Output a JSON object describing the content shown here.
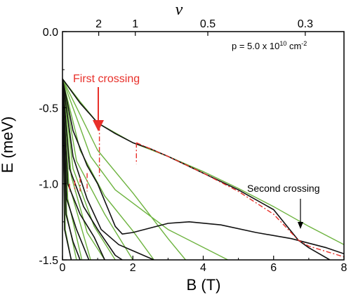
{
  "chart_data": {
    "type": "line",
    "xlabel": "B (T)",
    "ylabel": "E (meV)",
    "top_axis_label": "ν",
    "xlim": [
      0,
      8
    ],
    "ylim": [
      -1.5,
      0.0
    ],
    "x_ticks": [
      0,
      2,
      4,
      6,
      8
    ],
    "x_tick_labels": [
      "0",
      "2",
      "4",
      "6",
      "8"
    ],
    "y_ticks": [
      0.0,
      -0.5,
      -1.0,
      -1.5
    ],
    "y_tick_labels": [
      "0.0",
      "-0.5",
      "-1.0",
      "-1.5"
    ],
    "top_ticks": [
      {
        "B": 1.03,
        "label": "2"
      },
      {
        "B": 2.07,
        "label": "1"
      },
      {
        "B": 4.13,
        "label": "0.5"
      },
      {
        "B": 6.9,
        "label": "0.3"
      }
    ],
    "density": {
      "text": "p = 5.0 x 10",
      "exp": "10",
      "unit": " cm",
      "unit_exp": "-2"
    },
    "annotations": {
      "first_crossing": {
        "text": "First crossing",
        "color": "#e8302a",
        "B": 1.0,
        "E": -0.6
      },
      "second_crossing": {
        "text": "Second crossing",
        "color": "#000000",
        "B": 6.7,
        "E": -1.37
      }
    },
    "colors": {
      "green": "#6db33f",
      "black": "#111111",
      "red": "#e8302a"
    },
    "series": [
      {
        "color": "green",
        "points": [
          [
            0,
            -0.31
          ],
          [
            0.5,
            -0.46
          ],
          [
            1.0,
            -0.6
          ],
          [
            2,
            -0.73
          ],
          [
            3,
            -0.82
          ],
          [
            4,
            -0.92
          ],
          [
            5,
            -1.03
          ],
          [
            6,
            -1.15
          ],
          [
            7,
            -1.28
          ],
          [
            8,
            -1.4
          ]
        ]
      },
      {
        "color": "green",
        "points": [
          [
            0,
            -0.31
          ],
          [
            1,
            -0.78
          ],
          [
            2,
            -1.06
          ],
          [
            3,
            -1.36
          ],
          [
            3.5,
            -1.5
          ]
        ]
      },
      {
        "color": "green",
        "points": [
          [
            0,
            -0.31
          ],
          [
            0.8,
            -0.82
          ],
          [
            1.5,
            -1.04
          ],
          [
            3,
            -1.3
          ],
          [
            4.7,
            -1.5
          ]
        ]
      },
      {
        "color": "green",
        "points": [
          [
            0,
            -0.31
          ],
          [
            0.5,
            -0.78
          ],
          [
            1.2,
            -1.08
          ],
          [
            2,
            -1.31
          ],
          [
            2.6,
            -1.5
          ]
        ]
      },
      {
        "color": "green",
        "points": [
          [
            0,
            -0.31
          ],
          [
            0.4,
            -0.85
          ],
          [
            1.2,
            -1.2
          ],
          [
            2.0,
            -1.5
          ]
        ]
      },
      {
        "color": "green",
        "points": [
          [
            0,
            -0.31
          ],
          [
            0.3,
            -0.9
          ],
          [
            0.9,
            -1.28
          ],
          [
            1.5,
            -1.5
          ]
        ]
      },
      {
        "color": "green",
        "points": [
          [
            0,
            -0.31
          ],
          [
            0.25,
            -0.95
          ],
          [
            0.7,
            -1.32
          ],
          [
            1.2,
            -1.5
          ]
        ]
      },
      {
        "color": "green",
        "points": [
          [
            0,
            -0.31
          ],
          [
            0.18,
            -1.0
          ],
          [
            0.8,
            -1.5
          ]
        ]
      },
      {
        "color": "green",
        "points": [
          [
            0,
            -0.31
          ],
          [
            0.15,
            -1.1
          ],
          [
            0.55,
            -1.5
          ]
        ]
      },
      {
        "color": "green",
        "points": [
          [
            0,
            -0.31
          ],
          [
            0.12,
            -1.2
          ],
          [
            0.4,
            -1.5
          ]
        ]
      },
      {
        "color": "green",
        "points": [
          [
            0,
            -0.31
          ],
          [
            0.08,
            -1.3
          ],
          [
            0.25,
            -1.5
          ]
        ]
      },
      {
        "color": "black",
        "points": [
          [
            0,
            -0.31
          ],
          [
            0.5,
            -0.47
          ],
          [
            1,
            -0.6
          ],
          [
            1.5,
            -0.67
          ],
          [
            2,
            -0.73
          ],
          [
            2.5,
            -0.77
          ],
          [
            3,
            -0.82
          ],
          [
            4,
            -0.93
          ],
          [
            5,
            -1.04
          ],
          [
            6,
            -1.17
          ],
          [
            6.7,
            -1.37
          ],
          [
            7,
            -1.42
          ],
          [
            7.6,
            -1.5
          ]
        ]
      },
      {
        "color": "black",
        "points": [
          [
            0,
            -0.31
          ],
          [
            0.3,
            -0.65
          ],
          [
            0.7,
            -0.88
          ],
          [
            1.0,
            -1.0
          ],
          [
            1.5,
            -1.28
          ],
          [
            1.7,
            -1.33
          ],
          [
            2,
            -1.32
          ],
          [
            3,
            -1.26
          ],
          [
            3.6,
            -1.25
          ],
          [
            4.5,
            -1.27
          ],
          [
            5.5,
            -1.32
          ],
          [
            6.5,
            -1.36
          ],
          [
            7.5,
            -1.42
          ],
          [
            8,
            -1.46
          ]
        ]
      },
      {
        "color": "black",
        "points": [
          [
            0,
            -0.31
          ],
          [
            0.3,
            -0.82
          ],
          [
            0.7,
            -1.1
          ],
          [
            1.1,
            -1.3
          ],
          [
            1.6,
            -1.4
          ],
          [
            2,
            -1.44
          ],
          [
            2.6,
            -1.5
          ]
        ]
      },
      {
        "color": "black",
        "points": [
          [
            0,
            -0.31
          ],
          [
            0.2,
            -0.9
          ],
          [
            0.6,
            -1.15
          ],
          [
            1.0,
            -1.3
          ],
          [
            1.5,
            -1.47
          ],
          [
            1.7,
            -1.5
          ]
        ]
      },
      {
        "color": "black",
        "points": [
          [
            0,
            -0.31
          ],
          [
            0.15,
            -1.0
          ],
          [
            0.5,
            -1.2
          ],
          [
            0.9,
            -1.35
          ],
          [
            1.2,
            -1.5
          ]
        ]
      },
      {
        "color": "black",
        "points": [
          [
            0,
            -0.31
          ],
          [
            0.12,
            -1.1
          ],
          [
            0.4,
            -1.3
          ],
          [
            0.75,
            -1.5
          ]
        ]
      },
      {
        "color": "black",
        "points": [
          [
            0,
            -0.31
          ],
          [
            0.1,
            -1.2
          ],
          [
            0.3,
            -1.38
          ],
          [
            0.5,
            -1.5
          ]
        ]
      },
      {
        "color": "black",
        "points": [
          [
            0,
            -0.31
          ],
          [
            0.06,
            -1.3
          ],
          [
            0.25,
            -1.5
          ]
        ]
      },
      {
        "color": "red",
        "dash": true,
        "points": [
          [
            2.1,
            -0.73
          ],
          [
            3,
            -0.82
          ],
          [
            4,
            -0.93
          ],
          [
            5,
            -1.05
          ],
          [
            6,
            -1.2
          ],
          [
            6.7,
            -1.37
          ],
          [
            7,
            -1.41
          ],
          [
            8,
            -1.48
          ]
        ]
      },
      {
        "color": "red",
        "dash": true,
        "points": [
          [
            1.05,
            -0.62
          ],
          [
            1.05,
            -0.95
          ]
        ]
      },
      {
        "color": "red",
        "dash": true,
        "points": [
          [
            2.1,
            -0.73
          ],
          [
            2.1,
            -0.87
          ]
        ]
      },
      {
        "color": "red",
        "dash": true,
        "points": [
          [
            0.7,
            -0.93
          ],
          [
            0.7,
            -1.05
          ]
        ]
      },
      {
        "color": "red",
        "dash": true,
        "points": [
          [
            0.5,
            -0.96
          ],
          [
            0.5,
            -1.05
          ]
        ]
      },
      {
        "color": "red",
        "dash": true,
        "points": [
          [
            0.35,
            -0.98
          ],
          [
            0.35,
            -1.05
          ]
        ]
      },
      {
        "color": "red",
        "dash": true,
        "points": [
          [
            0.2,
            -1.0
          ],
          [
            0.2,
            -1.05
          ]
        ]
      }
    ]
  }
}
